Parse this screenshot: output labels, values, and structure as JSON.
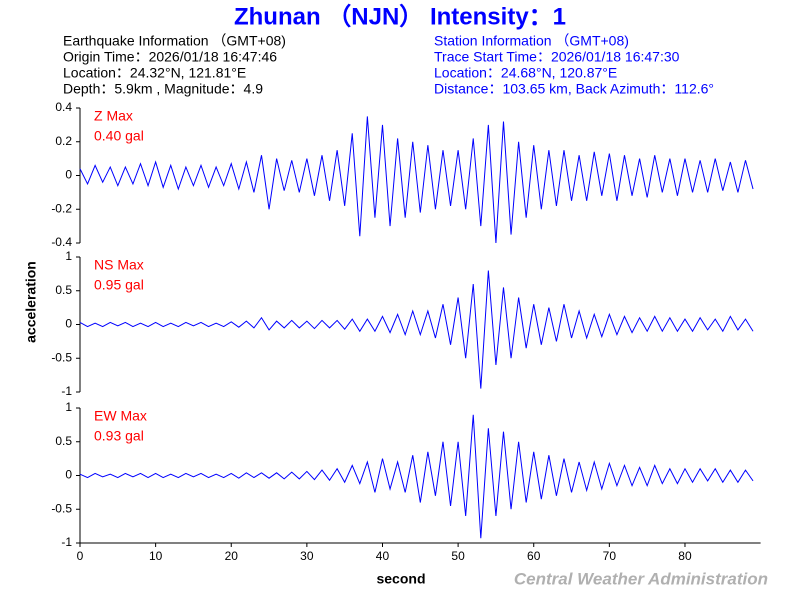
{
  "title": "Zhunan （NJN） Intensity：1",
  "earthquake_info": [
    "Earthquake Information （GMT+08)",
    "Origin Time：2026/01/18 16:47:46",
    "Location：24.32°N, 121.81°E",
    "Depth：5.9km , Magnitude：4.9"
  ],
  "station_info": [
    "Station Information （GMT+08)",
    "Trace Start Time：2026/01/18 16:47:30",
    "Location：24.68°N, 120.87°E",
    "Distance：103.65 km, Back Azimuth：112.6°"
  ],
  "xlabel": "second",
  "ylabel": "acceleration",
  "credit": "Central Weather Administration",
  "chart_data": [
    {
      "type": "line",
      "annotations": [
        "Z Max",
        "0.40 gal"
      ],
      "xlim": [
        0,
        90
      ],
      "ylim": [
        -0.4,
        0.4
      ],
      "yticks": [
        0.4,
        0.2,
        0,
        -0.2,
        -0.4
      ],
      "x": [
        0,
        1,
        2,
        3,
        4,
        5,
        6,
        7,
        8,
        9,
        10,
        11,
        12,
        13,
        14,
        15,
        16,
        17,
        18,
        19,
        20,
        21,
        22,
        23,
        24,
        25,
        26,
        27,
        28,
        29,
        30,
        31,
        32,
        33,
        34,
        35,
        36,
        37,
        38,
        39,
        40,
        41,
        42,
        43,
        44,
        45,
        46,
        47,
        48,
        49,
        50,
        51,
        52,
        53,
        54,
        55,
        56,
        57,
        58,
        59,
        60,
        61,
        62,
        63,
        64,
        65,
        66,
        67,
        68,
        69,
        70,
        71,
        72,
        73,
        74,
        75,
        76,
        77,
        78,
        79,
        80,
        81,
        82,
        83,
        84,
        85,
        86,
        87,
        88,
        89
      ],
      "series": [
        {
          "name": "Z",
          "color": "#0000ff",
          "values": [
            0.04,
            -0.05,
            0.06,
            -0.04,
            0.05,
            -0.06,
            0.05,
            -0.05,
            0.07,
            -0.06,
            0.08,
            -0.07,
            0.06,
            -0.08,
            0.05,
            -0.06,
            0.06,
            -0.07,
            0.05,
            -0.06,
            0.07,
            -0.08,
            0.08,
            -0.1,
            0.12,
            -0.2,
            0.1,
            -0.09,
            0.09,
            -0.1,
            0.1,
            -0.12,
            0.12,
            -0.15,
            0.15,
            -0.18,
            0.25,
            -0.36,
            0.35,
            -0.25,
            0.3,
            -0.3,
            0.22,
            -0.25,
            0.2,
            -0.22,
            0.18,
            -0.2,
            0.15,
            -0.18,
            0.15,
            -0.2,
            0.22,
            -0.3,
            0.3,
            -0.4,
            0.32,
            -0.35,
            0.2,
            -0.25,
            0.18,
            -0.2,
            0.15,
            -0.18,
            0.15,
            -0.15,
            0.12,
            -0.15,
            0.14,
            -0.12,
            0.13,
            -0.15,
            0.12,
            -0.12,
            0.1,
            -0.13,
            0.12,
            -0.1,
            0.1,
            -0.12,
            0.1,
            -0.1,
            0.09,
            -0.1,
            0.1,
            -0.09,
            0.08,
            -0.1,
            0.09,
            -0.08
          ]
        }
      ]
    },
    {
      "type": "line",
      "annotations": [
        "NS Max",
        "0.95 gal"
      ],
      "xlim": [
        0,
        90
      ],
      "ylim": [
        -1,
        1
      ],
      "yticks": [
        1,
        0.5,
        0,
        -0.5,
        -1
      ],
      "x": [
        0,
        1,
        2,
        3,
        4,
        5,
        6,
        7,
        8,
        9,
        10,
        11,
        12,
        13,
        14,
        15,
        16,
        17,
        18,
        19,
        20,
        21,
        22,
        23,
        24,
        25,
        26,
        27,
        28,
        29,
        30,
        31,
        32,
        33,
        34,
        35,
        36,
        37,
        38,
        39,
        40,
        41,
        42,
        43,
        44,
        45,
        46,
        47,
        48,
        49,
        50,
        51,
        52,
        53,
        54,
        55,
        56,
        57,
        58,
        59,
        60,
        61,
        62,
        63,
        64,
        65,
        66,
        67,
        68,
        69,
        70,
        71,
        72,
        73,
        74,
        75,
        76,
        77,
        78,
        79,
        80,
        81,
        82,
        83,
        84,
        85,
        86,
        87,
        88,
        89
      ],
      "series": [
        {
          "name": "NS",
          "color": "#0000ff",
          "values": [
            0.03,
            -0.03,
            0.02,
            -0.03,
            0.03,
            -0.02,
            0.03,
            -0.03,
            0.02,
            -0.03,
            0.03,
            -0.03,
            0.02,
            -0.03,
            0.03,
            -0.02,
            0.03,
            -0.03,
            0.02,
            -0.03,
            0.04,
            -0.04,
            0.05,
            -0.05,
            0.1,
            -0.08,
            0.05,
            -0.05,
            0.06,
            -0.05,
            0.05,
            -0.06,
            0.06,
            -0.05,
            0.06,
            -0.07,
            0.08,
            -0.1,
            0.08,
            -0.1,
            0.12,
            -0.12,
            0.15,
            -0.15,
            0.2,
            -0.15,
            0.2,
            -0.2,
            0.3,
            -0.3,
            0.4,
            -0.5,
            0.6,
            -0.95,
            0.8,
            -0.6,
            0.55,
            -0.5,
            0.4,
            -0.35,
            0.3,
            -0.3,
            0.25,
            -0.25,
            0.3,
            -0.2,
            0.2,
            -0.2,
            0.15,
            -0.18,
            0.15,
            -0.15,
            0.12,
            -0.12,
            0.1,
            -0.1,
            0.12,
            -0.1,
            0.1,
            -0.1,
            0.08,
            -0.1,
            0.1,
            -0.08,
            0.08,
            -0.1,
            0.12,
            -0.08,
            0.08,
            -0.1
          ]
        }
      ]
    },
    {
      "type": "line",
      "annotations": [
        "EW Max",
        "0.93 gal"
      ],
      "xlim": [
        0,
        90
      ],
      "ylim": [
        -1,
        1
      ],
      "yticks": [
        1,
        0.5,
        0,
        -0.5,
        -1
      ],
      "xticks": [
        0,
        10,
        20,
        30,
        40,
        50,
        60,
        70,
        80
      ],
      "x": [
        0,
        1,
        2,
        3,
        4,
        5,
        6,
        7,
        8,
        9,
        10,
        11,
        12,
        13,
        14,
        15,
        16,
        17,
        18,
        19,
        20,
        21,
        22,
        23,
        24,
        25,
        26,
        27,
        28,
        29,
        30,
        31,
        32,
        33,
        34,
        35,
        36,
        37,
        38,
        39,
        40,
        41,
        42,
        43,
        44,
        45,
        46,
        47,
        48,
        49,
        50,
        51,
        52,
        53,
        54,
        55,
        56,
        57,
        58,
        59,
        60,
        61,
        62,
        63,
        64,
        65,
        66,
        67,
        68,
        69,
        70,
        71,
        72,
        73,
        74,
        75,
        76,
        77,
        78,
        79,
        80,
        81,
        82,
        83,
        84,
        85,
        86,
        87,
        88,
        89
      ],
      "series": [
        {
          "name": "EW",
          "color": "#0000ff",
          "values": [
            0.02,
            -0.03,
            0.03,
            -0.02,
            0.02,
            -0.03,
            0.03,
            -0.02,
            0.03,
            -0.03,
            0.03,
            -0.03,
            0.02,
            -0.03,
            0.03,
            -0.02,
            0.03,
            -0.03,
            0.02,
            -0.03,
            0.03,
            -0.04,
            0.04,
            -0.03,
            0.04,
            -0.04,
            0.04,
            -0.05,
            0.05,
            -0.05,
            0.06,
            -0.06,
            0.08,
            -0.07,
            0.1,
            -0.1,
            0.15,
            -0.12,
            0.2,
            -0.25,
            0.25,
            -0.2,
            0.2,
            -0.25,
            0.3,
            -0.4,
            0.35,
            -0.3,
            0.5,
            -0.45,
            0.5,
            -0.6,
            0.9,
            -0.93,
            0.7,
            -0.6,
            0.65,
            -0.5,
            0.5,
            -0.4,
            0.35,
            -0.35,
            0.3,
            -0.3,
            0.25,
            -0.25,
            0.2,
            -0.22,
            0.2,
            -0.2,
            0.18,
            -0.15,
            0.15,
            -0.15,
            0.12,
            -0.15,
            0.15,
            -0.12,
            0.1,
            -0.12,
            0.1,
            -0.1,
            0.1,
            -0.08,
            0.1,
            -0.1,
            0.08,
            -0.1,
            0.08,
            -0.08
          ]
        }
      ]
    }
  ]
}
